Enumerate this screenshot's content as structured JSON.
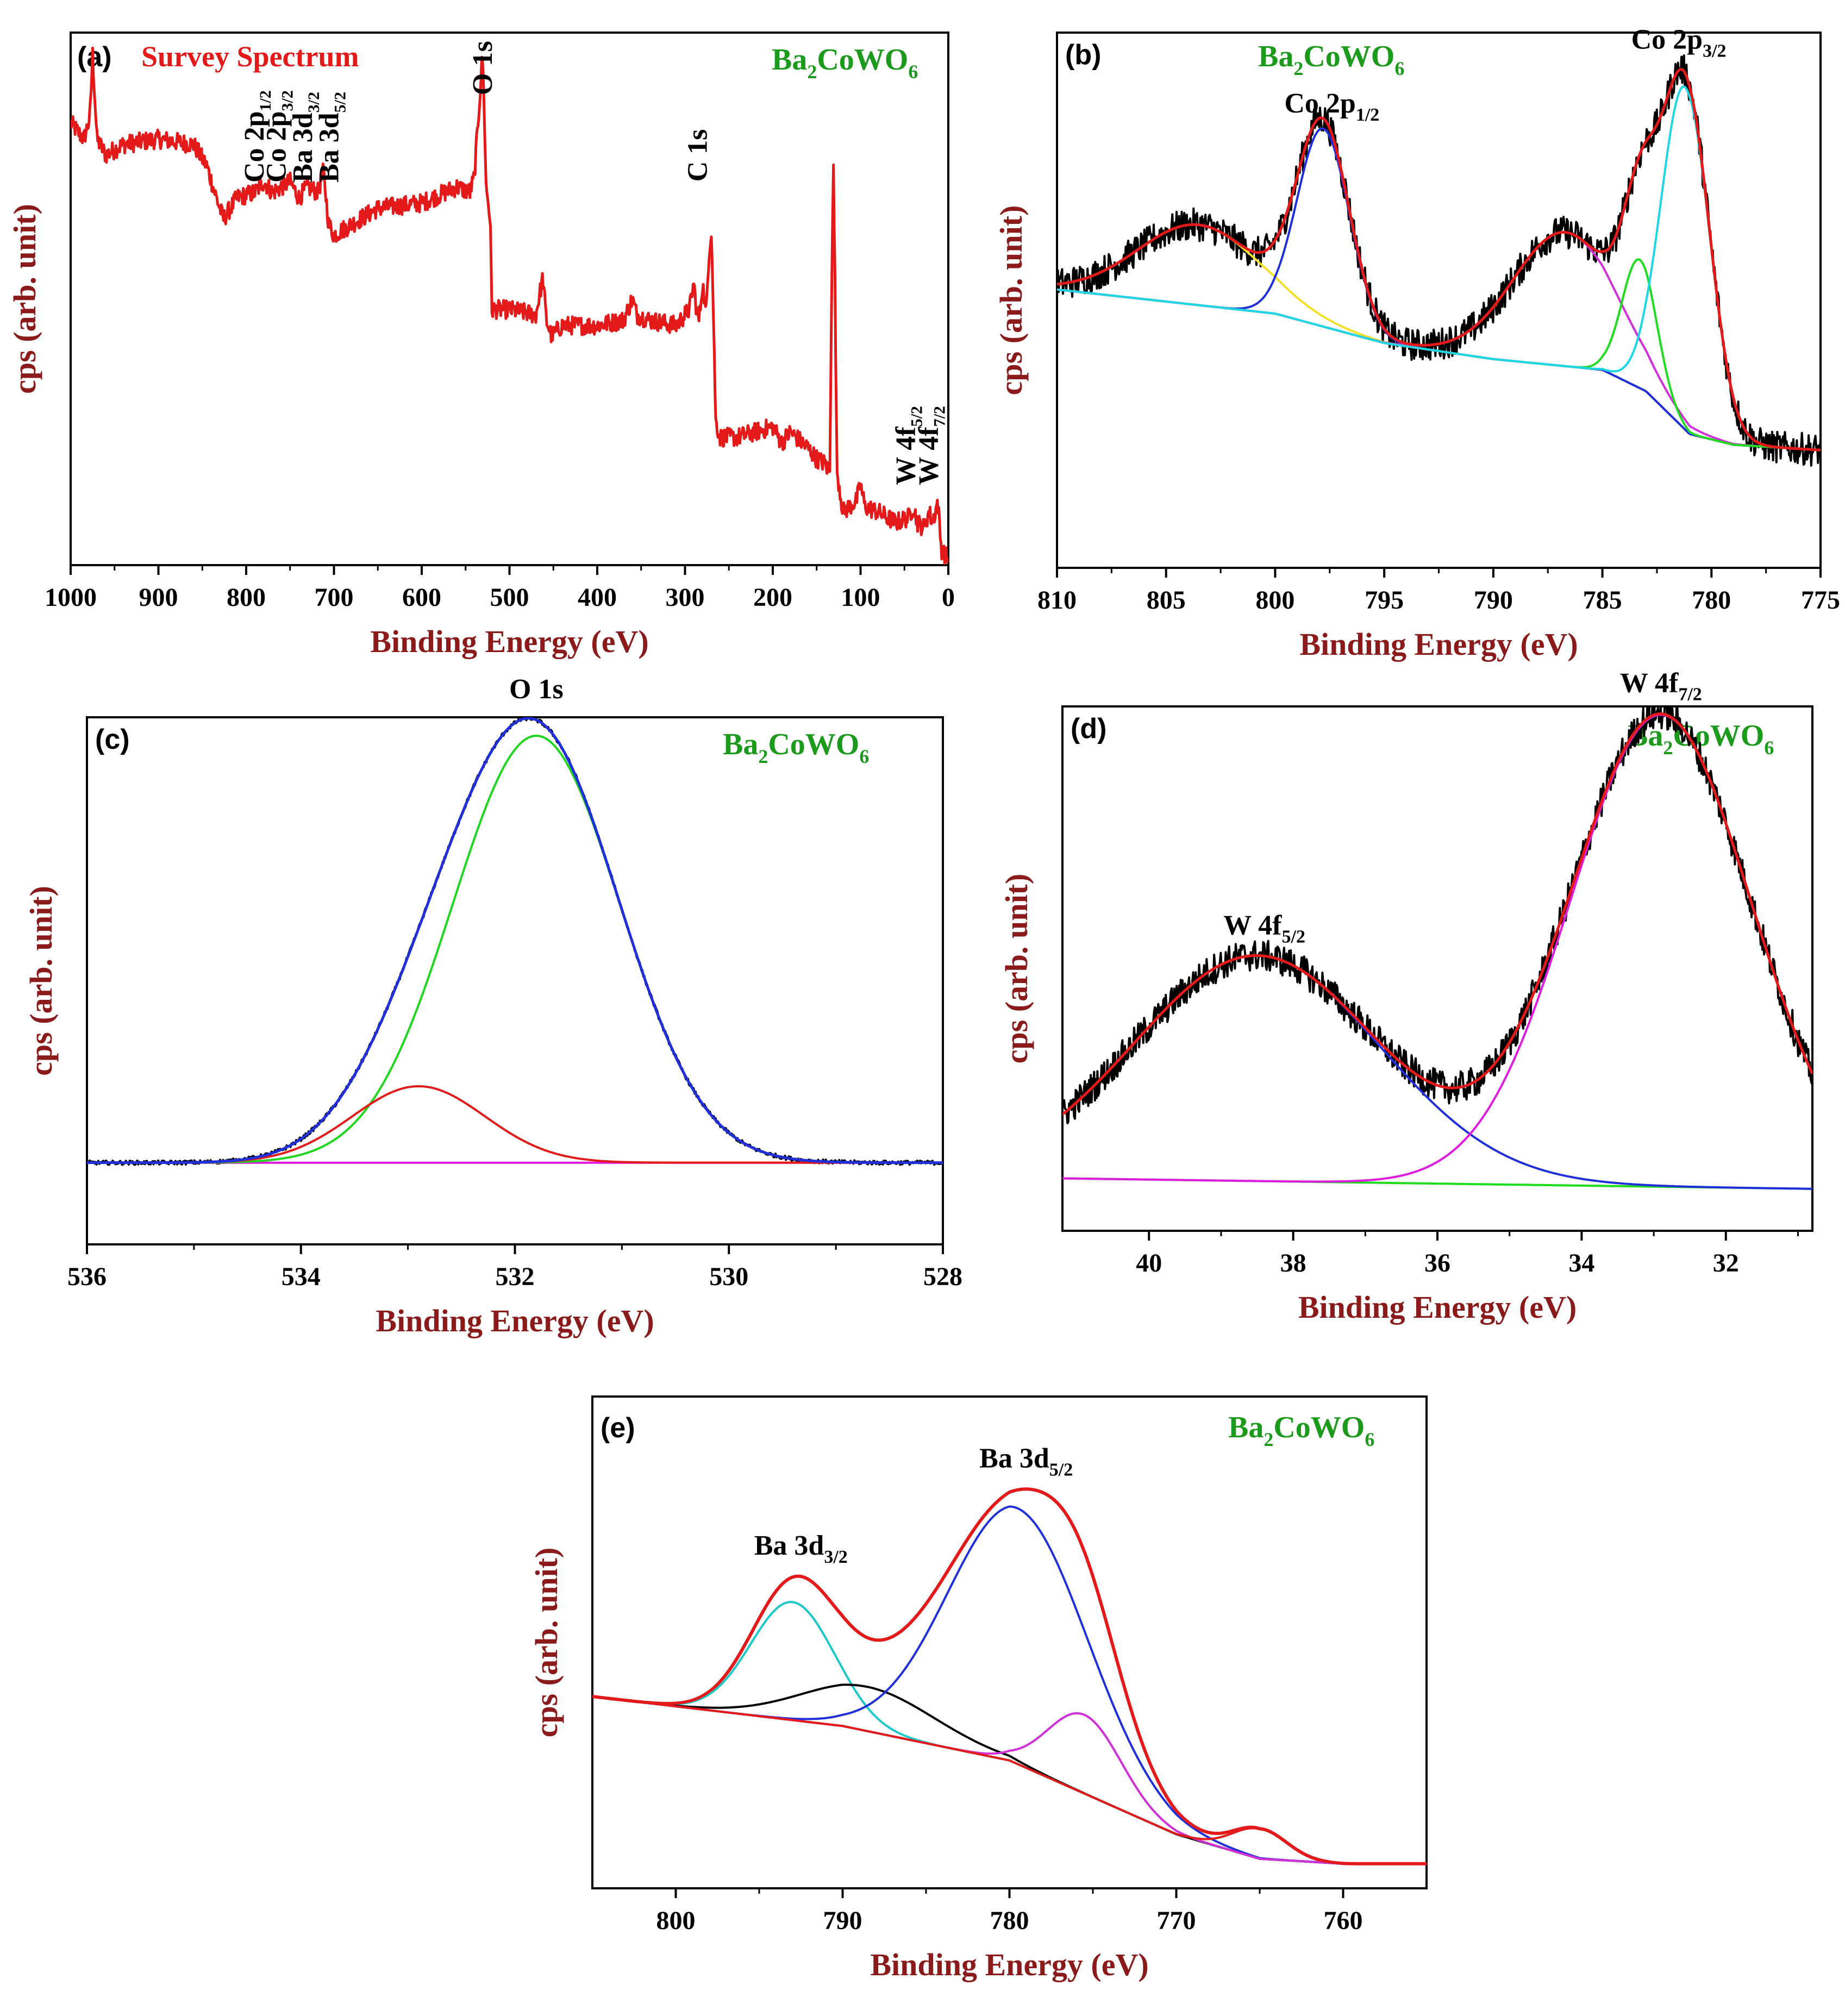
{
  "chart_data": [
    {
      "id": "a",
      "type": "line",
      "panel_label": "(a)",
      "title": "Survey Spectrum",
      "compound": {
        "main": "Ba",
        "s1": "2",
        "mid": "CoWO",
        "s2": "6"
      },
      "xlabel": "Binding Energy (eV)",
      "ylabel": "cps (arb. unit)",
      "xlim": [
        1000,
        0
      ],
      "ylim": [
        0,
        100
      ],
      "xticks": [
        1000,
        900,
        800,
        700,
        600,
        500,
        400,
        300,
        200,
        100,
        0
      ],
      "series": [
        {
          "name": "survey",
          "color": "#e41a1a",
          "x": [
            1000,
            985,
            978,
            975,
            970,
            960,
            940,
            900,
            860,
            845,
            832,
            826,
            810,
            790,
            780,
            770,
            750,
            740,
            730,
            718,
            712,
            706,
            700,
            680,
            650,
            600,
            560,
            545,
            540,
            533,
            531,
            529,
            527,
            522,
            520,
            500,
            470,
            462,
            458,
            452,
            440,
            400,
            370,
            360,
            355,
            340,
            310,
            295,
            290,
            287,
            284,
            280,
            276,
            273,
            270,
            268,
            265,
            260,
            240,
            200,
            190,
            180,
            160,
            150,
            140,
            135,
            133,
            131,
            129,
            127,
            120,
            105,
            100,
            95,
            80,
            60,
            45,
            40,
            35,
            28,
            22,
            18,
            12,
            8,
            0
          ],
          "y": [
            83,
            80,
            84,
            96,
            80,
            77,
            79,
            80,
            79,
            75,
            68,
            65,
            69,
            70,
            72,
            70,
            72,
            69,
            71,
            70,
            74,
            64,
            62,
            64,
            67,
            68,
            71,
            70,
            73,
            90,
            96,
            88,
            72,
            65,
            48,
            48,
            47,
            54,
            46,
            43,
            45,
            45,
            46,
            50,
            47,
            46,
            45,
            48,
            53,
            48,
            46,
            53,
            47,
            58,
            63,
            50,
            27,
            24,
            24,
            26,
            23,
            25,
            22,
            20,
            19,
            17,
            52,
            76,
            52,
            18,
            10,
            12,
            15,
            11,
            10,
            8,
            9,
            11,
            8,
            7,
            10,
            8,
            12,
            3,
            1
          ]
        }
      ],
      "annotations": [
        {
          "text": "O 1s",
          "x": 530
        },
        {
          "text": "C 1s",
          "x": 285
        },
        {
          "main": "Co 2p",
          "sub": "1/2",
          "x": 790
        },
        {
          "main": "Co 2p",
          "sub": "3/2",
          "x": 765
        },
        {
          "main": "Ba 3d",
          "sub": "3/2",
          "x": 735
        },
        {
          "main": "Ba 3d",
          "sub": "5/2",
          "x": 705
        },
        {
          "main": "W 4f",
          "sub": "5/2",
          "x": 48
        },
        {
          "main": "W 4f",
          "sub": "7/2",
          "x": 22
        }
      ]
    },
    {
      "id": "b",
      "type": "line",
      "panel_label": "(b)",
      "compound": {
        "main": "Ba",
        "s1": "2",
        "mid": "CoWO",
        "s2": "6"
      },
      "xlabel": "Binding Energy (eV)",
      "ylabel": "cps (arb. unit)",
      "xlim": [
        810,
        775
      ],
      "ylim": [
        0,
        100
      ],
      "xticks": [
        810,
        805,
        800,
        795,
        790,
        785,
        780,
        775
      ],
      "annotations": [
        {
          "main": "Co 2p",
          "sub": "1/2",
          "x": 797.4
        },
        {
          "main": "Co 2p",
          "sub": "3/2",
          "x": 781.5
        }
      ],
      "baseline": {
        "color": "#7b2fd0",
        "x": [
          810,
          800,
          795,
          790,
          785,
          783,
          781,
          779,
          775
        ],
        "y": [
          52,
          47.5,
          42,
          39,
          37,
          33,
          25,
          23,
          22
        ]
      },
      "components": [
        {
          "name": "peak 803.5",
          "color": "#f2e02a",
          "center": 803.5,
          "height": 15,
          "width": 2.8
        },
        {
          "name": "peak 797.8",
          "color": "#1f2fd9",
          "center": 797.8,
          "height": 37,
          "width": 1.2
        },
        {
          "name": "peak 786.7",
          "color": "#d12fd9",
          "center": 786.7,
          "height": 25,
          "width": 2.4
        },
        {
          "name": "peak 783.3",
          "color": "#1fdc1f",
          "center": 783.3,
          "height": 24,
          "width": 0.8
        },
        {
          "name": "peak 781.2",
          "color": "#1fd6e6",
          "center": 781.2,
          "height": 64,
          "width": 1.1
        }
      ],
      "envelope_color": "#e41a1a",
      "data_color": "#000000"
    },
    {
      "id": "c",
      "type": "line",
      "panel_label": "(c)",
      "compound": {
        "main": "Ba",
        "s1": "2",
        "mid": "CoWO",
        "s2": "6"
      },
      "xlabel": "Binding Energy (eV)",
      "ylabel": "cps (arb. unit)",
      "xlim": [
        536,
        528
      ],
      "ylim": [
        0,
        100
      ],
      "xticks": [
        536,
        534,
        532,
        530,
        528
      ],
      "annotations": [
        {
          "text": "O 1s",
          "x": 531.8
        }
      ],
      "baseline": {
        "color": "#e01be0",
        "x": [
          536,
          528
        ],
        "y": [
          15.5,
          15.5
        ]
      },
      "components": [
        {
          "name": "peak 531.8",
          "color": "#1fd61f",
          "center": 531.8,
          "height": 81,
          "width": 0.78
        },
        {
          "name": "peak 532.9",
          "color": "#e41a1a",
          "center": 532.9,
          "height": 14.5,
          "width": 0.62
        }
      ],
      "envelope_color": "#1f2fd9",
      "data_color": "#000000"
    },
    {
      "id": "d",
      "type": "line",
      "panel_label": "(d)",
      "compound": {
        "main": "Ba",
        "s1": "2",
        "mid": "CoWO",
        "s2": "6"
      },
      "xlabel": "Binding Energy (eV)",
      "ylabel": "cps (arb. unit)",
      "xlim": [
        41.2,
        30.8
      ],
      "ylim": [
        0,
        100
      ],
      "xticks": [
        40,
        38,
        36,
        34,
        32
      ],
      "annotations": [
        {
          "main": "W 4f",
          "sub": "5/2",
          "x": 38.4
        },
        {
          "main": "W 4f",
          "sub": "7/2",
          "x": 32.9
        }
      ],
      "baseline": {
        "color": "#1fdc1f",
        "x": [
          41.2,
          30.8
        ],
        "y": [
          10,
          8
        ]
      },
      "components": [
        {
          "name": "W 4f5/2",
          "color": "#1f2fd9",
          "center": 38.5,
          "height": 43,
          "width": 1.7
        },
        {
          "name": "W 4f7/2",
          "color": "#e01be0",
          "center": 32.9,
          "height": 90,
          "width": 1.25
        }
      ],
      "envelope_color": "#e41a1a",
      "data_color": "#000000"
    },
    {
      "id": "e",
      "type": "line",
      "panel_label": "(e)",
      "compound": {
        "main": "Ba",
        "s1": "2",
        "mid": "CoWO",
        "s2": "6"
      },
      "xlabel": "Binding Energy (eV)",
      "ylabel": "cps (arb. unit)",
      "xlim": [
        805,
        755
      ],
      "ylim": [
        0,
        100
      ],
      "xticks": [
        800,
        790,
        780,
        770,
        760
      ],
      "annotations": [
        {
          "main": "Ba 3d",
          "sub": "3/2",
          "x": 792.5
        },
        {
          "main": "Ba 3d",
          "sub": "5/2",
          "x": 779
        }
      ],
      "baseline": {
        "color": "#8b4513",
        "x": [
          805,
          800,
          790,
          780,
          770,
          765,
          760,
          755
        ],
        "y": [
          39,
          37,
          33,
          26,
          11,
          6,
          5,
          5
        ]
      },
      "components": [
        {
          "name": "peak 793",
          "color": "#1fc8c8",
          "center": 793,
          "height": 24,
          "width": 2.5
        },
        {
          "name": "peak 788.5",
          "color": "#000000",
          "center": 788.5,
          "height": 9,
          "width": 4.0
        },
        {
          "name": "peak 779.5",
          "color": "#1f2fd9",
          "center": 779.5,
          "height": 52,
          "width": 4.2
        },
        {
          "name": "peak 775.5",
          "color": "#d12fd9",
          "center": 775.5,
          "height": 16,
          "width": 2.2
        },
        {
          "name": "peak 765",
          "color": "#e41a1a",
          "center": 765,
          "height": 6,
          "width": 1.6
        }
      ],
      "envelope_color": "#e41a1a",
      "data_color": "#e41a1a"
    }
  ]
}
